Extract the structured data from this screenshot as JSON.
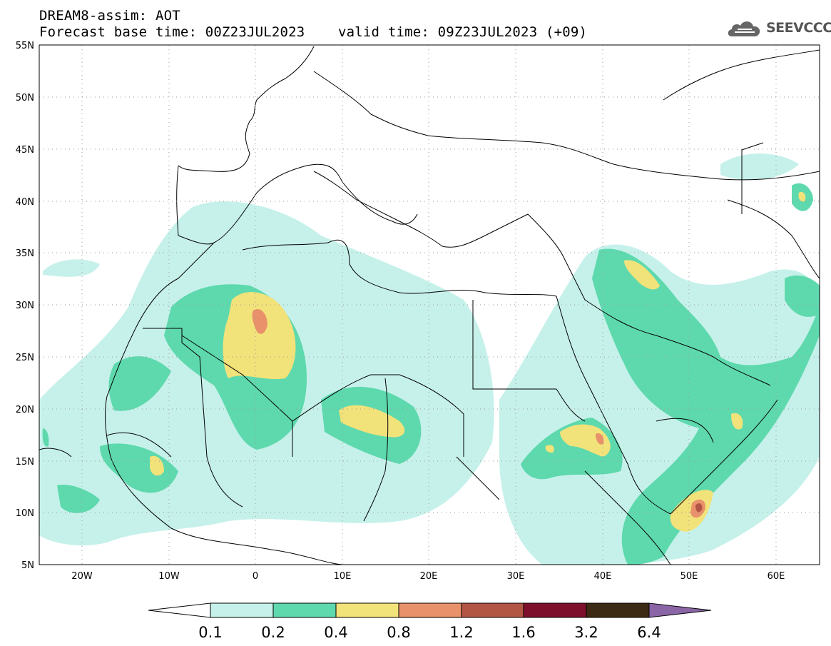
{
  "header": {
    "title_line1": "DREAM8-assim: AOT",
    "title_line2": "Forecast base time: 00Z23JUL2023    valid time: 09Z23JUL2023 (+09)"
  },
  "logo": {
    "text": "SEEVCCC",
    "icon": "cloud-icon"
  },
  "map": {
    "lon_range": [
      -25,
      65
    ],
    "lat_range": [
      5,
      55
    ],
    "lat_ticks": [
      "5N",
      "10N",
      "15N",
      "20N",
      "25N",
      "30N",
      "35N",
      "40N",
      "45N",
      "50N",
      "55N"
    ],
    "lon_ticks": [
      "20W",
      "10W",
      "0",
      "10E",
      "20E",
      "30E",
      "40E",
      "50E",
      "60E"
    ],
    "grid": "dotted"
  },
  "colorbar": {
    "levels": [
      "0.1",
      "0.2",
      "0.4",
      "0.8",
      "1.2",
      "1.6",
      "3.2",
      "6.4"
    ],
    "colors": [
      "#ffffff",
      "#c6f1ea",
      "#5ed9ae",
      "#f2e27a",
      "#e8916a",
      "#b25545",
      "#7e0f2c",
      "#3d2a14",
      "#8b66a6"
    ]
  }
}
